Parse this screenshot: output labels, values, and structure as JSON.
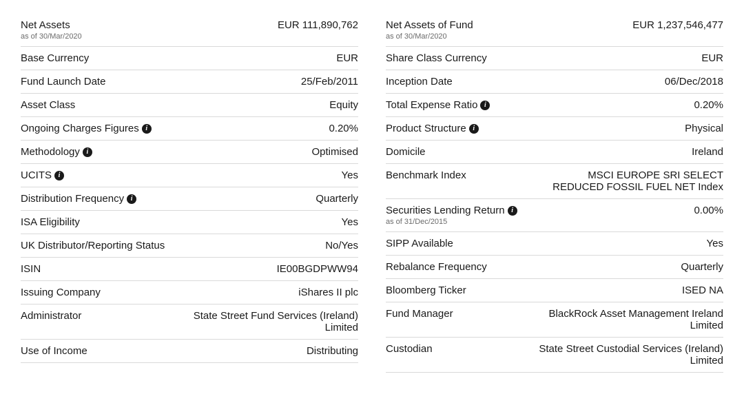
{
  "left": [
    {
      "label": "Net Assets",
      "sub": "as of 30/Mar/2020",
      "value": "EUR 111,890,762",
      "info": false
    },
    {
      "label": "Base Currency",
      "value": "EUR",
      "info": false
    },
    {
      "label": "Fund Launch Date",
      "value": "25/Feb/2011",
      "info": false
    },
    {
      "label": "Asset Class",
      "value": "Equity",
      "info": false
    },
    {
      "label": "Ongoing Charges Figures",
      "value": "0.20%",
      "info": true
    },
    {
      "label": "Methodology",
      "value": "Optimised",
      "info": true
    },
    {
      "label": "UCITS",
      "value": "Yes",
      "info": true
    },
    {
      "label": "Distribution Frequency",
      "value": "Quarterly",
      "info": true
    },
    {
      "label": "ISA Eligibility",
      "value": "Yes",
      "info": false
    },
    {
      "label": "UK Distributor/Reporting Status",
      "value": "No/Yes",
      "info": false
    },
    {
      "label": "ISIN",
      "value": "IE00BGDPWW94",
      "info": false
    },
    {
      "label": "Issuing Company",
      "value": "iShares II plc",
      "info": false
    },
    {
      "label": "Administrator",
      "value": "State Street Fund Services (Ireland) Limited",
      "info": false
    },
    {
      "label": "Use of Income",
      "value": "Distributing",
      "info": false
    }
  ],
  "right": [
    {
      "label": "Net Assets of Fund",
      "sub": "as of 30/Mar/2020",
      "value": "EUR 1,237,546,477",
      "info": false
    },
    {
      "label": "Share Class Currency",
      "value": "EUR",
      "info": false
    },
    {
      "label": "Inception Date",
      "value": "06/Dec/2018",
      "info": false
    },
    {
      "label": "Total Expense Ratio",
      "value": "0.20%",
      "info": true
    },
    {
      "label": "Product Structure",
      "value": "Physical",
      "info": true
    },
    {
      "label": "Domicile",
      "value": "Ireland",
      "info": false
    },
    {
      "label": "Benchmark Index",
      "value": "MSCI EUROPE SRI SELECT REDUCED FOSSIL FUEL NET Index",
      "info": false
    },
    {
      "label": "Securities Lending Return",
      "sub": "as of 31/Dec/2015",
      "value": "0.00%",
      "info": true
    },
    {
      "label": "SIPP Available",
      "value": "Yes",
      "info": false
    },
    {
      "label": "Rebalance Frequency",
      "value": "Quarterly",
      "info": false
    },
    {
      "label": "Bloomberg Ticker",
      "value": "ISED NA",
      "info": false
    },
    {
      "label": "Fund Manager",
      "value": "BlackRock Asset Management Ireland Limited",
      "info": false
    },
    {
      "label": "Custodian",
      "value": "State Street Custodial Services (Ireland) Limited",
      "info": false
    }
  ]
}
